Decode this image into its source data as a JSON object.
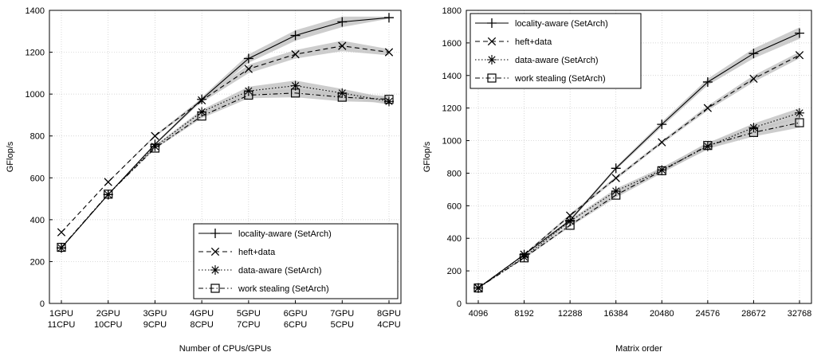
{
  "chart_data": [
    {
      "type": "line",
      "xlabel": "Number of CPUs/GPUs",
      "ylabel": "GFlop/s",
      "ylim": [
        0,
        1400
      ],
      "yticks": [
        0,
        200,
        400,
        600,
        800,
        1000,
        1200,
        1400
      ],
      "categories": [
        [
          "1GPU",
          "11CPU"
        ],
        [
          "2GPU",
          "10CPU"
        ],
        [
          "3GPU",
          "9CPU"
        ],
        [
          "4GPU",
          "8CPU"
        ],
        [
          "5GPU",
          "7CPU"
        ],
        [
          "6GPU",
          "6CPU"
        ],
        [
          "7GPU",
          "5CPU"
        ],
        [
          "8GPU",
          "4CPU"
        ]
      ],
      "grid": true,
      "legend": "bottom-right",
      "series": [
        {
          "name": "locality-aware (SetArch)",
          "marker": "plus",
          "dash": "solid",
          "values": [
            265,
            520,
            760,
            975,
            1170,
            1280,
            1345,
            1365
          ],
          "band": [
            0,
            0,
            5,
            10,
            20,
            25,
            25,
            5
          ]
        },
        {
          "name": "heft+data",
          "marker": "x",
          "dash": "dashed",
          "values": [
            340,
            580,
            800,
            970,
            1120,
            1190,
            1230,
            1200
          ],
          "band": [
            0,
            0,
            5,
            10,
            20,
            20,
            25,
            15
          ]
        },
        {
          "name": "data-aware (SetArch)",
          "marker": "star",
          "dash": "dotted",
          "values": [
            265,
            520,
            750,
            915,
            1015,
            1040,
            1005,
            965
          ],
          "band": [
            0,
            0,
            5,
            10,
            20,
            25,
            20,
            15
          ]
        },
        {
          "name": "work stealing (SetArch)",
          "marker": "square",
          "dash": "dashdot",
          "values": [
            268,
            522,
            742,
            895,
            995,
            1005,
            985,
            975
          ],
          "band": [
            0,
            0,
            5,
            10,
            15,
            20,
            20,
            15
          ]
        }
      ]
    },
    {
      "type": "line",
      "xlabel": "Matrix order",
      "ylabel": "GFlop/s",
      "ylim": [
        0,
        1800
      ],
      "yticks": [
        0,
        200,
        400,
        600,
        800,
        1000,
        1200,
        1400,
        1600,
        1800
      ],
      "categories": [
        "4096",
        "8192",
        "12288",
        "16384",
        "20480",
        "24576",
        "28672",
        "32768"
      ],
      "grid": true,
      "legend": "top-left",
      "series": [
        {
          "name": "locality-aware (SetArch)",
          "marker": "plus",
          "dash": "solid",
          "values": [
            95,
            300,
            510,
            830,
            1100,
            1360,
            1535,
            1660
          ],
          "band": [
            0,
            5,
            10,
            10,
            15,
            20,
            30,
            35
          ]
        },
        {
          "name": "heft+data",
          "marker": "x",
          "dash": "dashed",
          "values": [
            95,
            300,
            540,
            770,
            990,
            1200,
            1380,
            1525
          ],
          "band": [
            0,
            5,
            10,
            10,
            10,
            15,
            20,
            20
          ]
        },
        {
          "name": "data-aware (SetArch)",
          "marker": "star",
          "dash": "dotted",
          "values": [
            95,
            285,
            505,
            690,
            820,
            965,
            1080,
            1170
          ],
          "band": [
            0,
            5,
            10,
            15,
            15,
            20,
            25,
            30
          ]
        },
        {
          "name": "work stealing (SetArch)",
          "marker": "square",
          "dash": "dashdot",
          "values": [
            95,
            280,
            480,
            665,
            815,
            970,
            1050,
            1110
          ],
          "band": [
            0,
            5,
            10,
            15,
            15,
            20,
            25,
            30
          ]
        }
      ]
    }
  ]
}
